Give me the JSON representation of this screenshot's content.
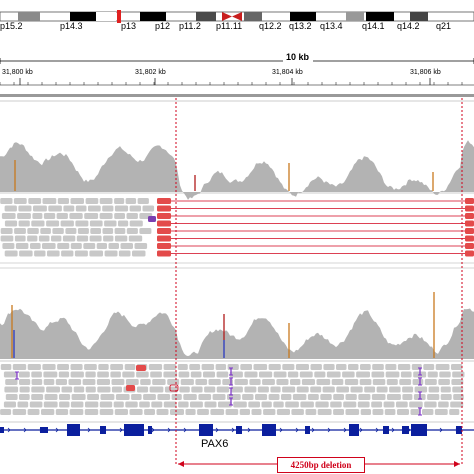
{
  "ideogram": {
    "bands": [
      "p15.2",
      "p14.3",
      "p13",
      "p12",
      "p11.2",
      "p11.11",
      "q12.2",
      "q13.2",
      "q13.4",
      "q14.1",
      "q14.2",
      "q21"
    ]
  },
  "ruler": {
    "scale_label": "10 kb",
    "ticks": [
      "31,800 kb",
      "31,802 kb",
      "31,804 kb",
      "31,806 kb"
    ]
  },
  "gene": {
    "name": "PAX6"
  },
  "deletion": {
    "label": "4250bp deletion"
  },
  "colors": {
    "coverage": "#b3b3b3",
    "read": "#c8c8c8",
    "deletion_line": "#d0021b",
    "gene": "#0b1f9e",
    "mismatch_orange": "#c8791e",
    "mismatch_purple": "#7b2fc9"
  }
}
